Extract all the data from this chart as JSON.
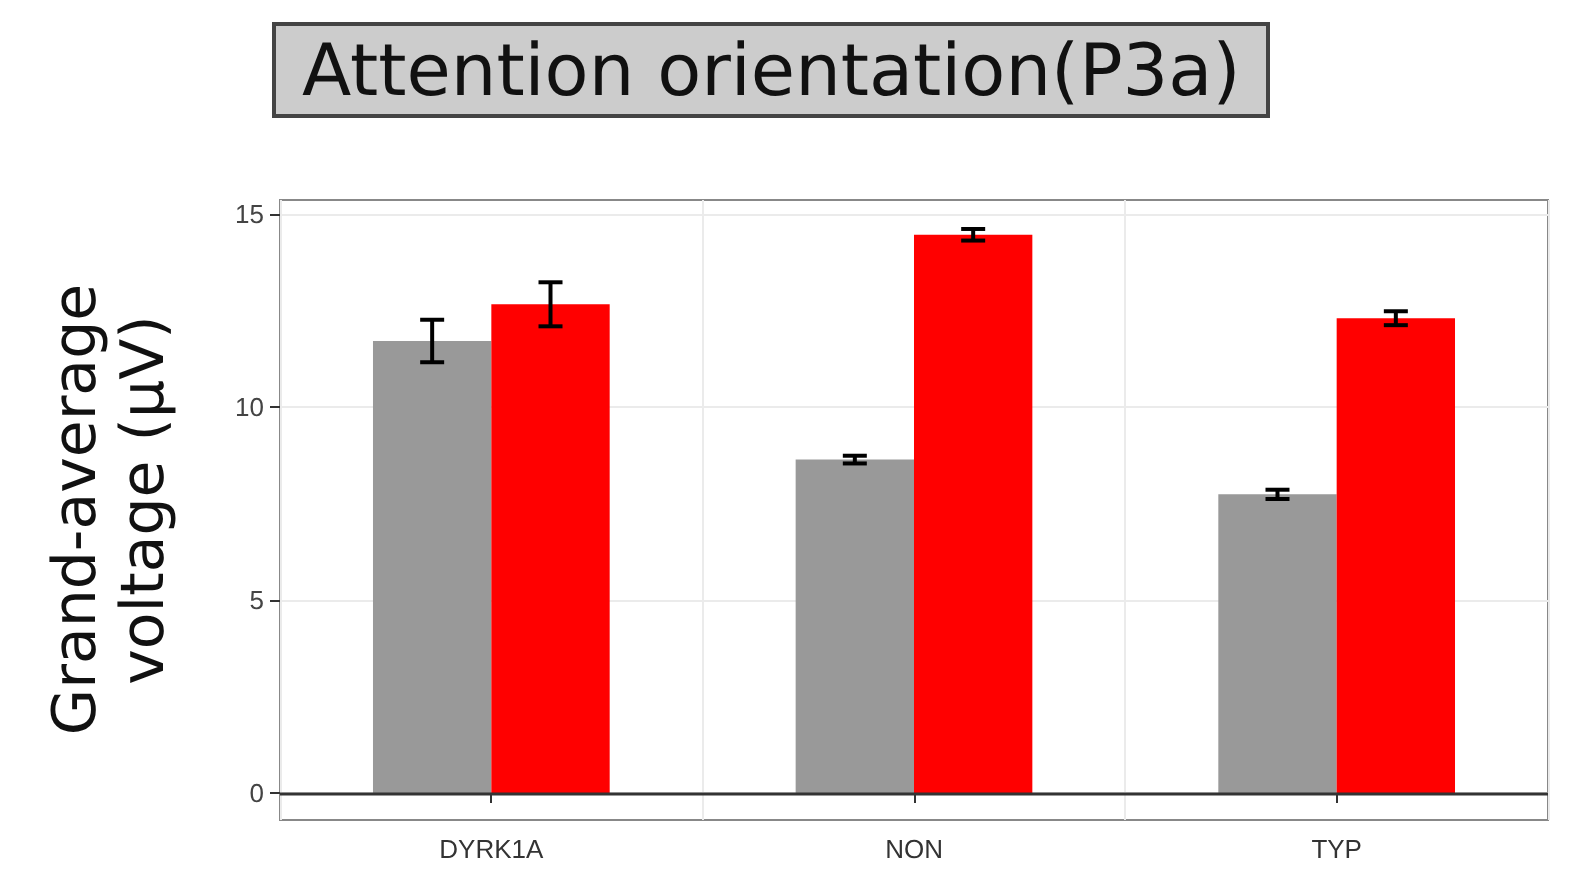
{
  "chart_data": {
    "type": "bar",
    "title": "Attention orientation(P3a)",
    "ylabel": "Grand-average voltage (μV)",
    "categories": [
      "DYRK1A",
      "NON",
      "TYP"
    ],
    "series": [
      {
        "color": "#999999",
        "values": [
          11.7,
          8.63,
          7.73
        ],
        "errors": [
          0.55,
          0.1,
          0.12
        ]
      },
      {
        "color": "#ff0000",
        "values": [
          12.65,
          14.45,
          12.29
        ],
        "errors": [
          0.57,
          0.15,
          0.18
        ]
      }
    ],
    "ylim": [
      -0.7,
      15.35
    ],
    "yticks": [
      0,
      5,
      10,
      15
    ],
    "grid": true,
    "ref_lines": [
      {
        "axis": "y",
        "value": 0,
        "color": "#333333"
      }
    ]
  }
}
